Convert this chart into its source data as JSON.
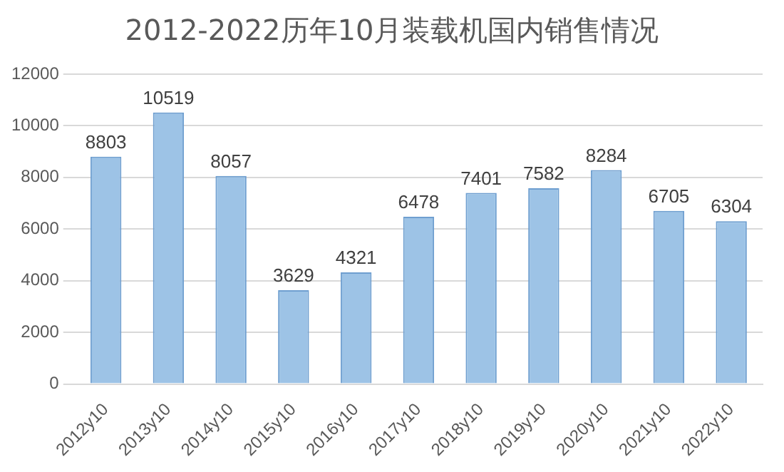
{
  "chart_data": {
    "type": "bar",
    "title": "2012-2022历年10月装载机国内销售情况",
    "categories": [
      "2012y10",
      "2013y10",
      "2014y10",
      "2015y10",
      "2016y10",
      "2017y10",
      "2018y10",
      "2019y10",
      "2020y10",
      "2021y10",
      "2022y10"
    ],
    "values": [
      8803,
      10519,
      8057,
      3629,
      4321,
      6478,
      7401,
      7582,
      8284,
      6705,
      6304
    ],
    "color": "#9dc3e6",
    "ylim": [
      0,
      12000
    ],
    "yticks": [
      0,
      2000,
      4000,
      6000,
      8000,
      10000,
      12000
    ],
    "grid": "y",
    "data_labels": true,
    "legend": false
  }
}
